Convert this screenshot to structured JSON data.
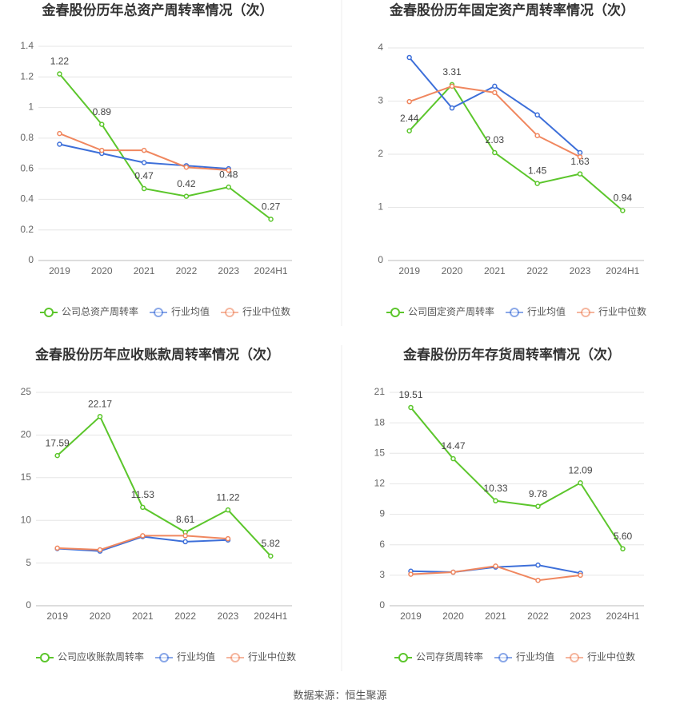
{
  "chart_data": [
    {
      "type": "line",
      "title": "金春股份历年总资产周转率情况（次）",
      "categories": [
        "2019",
        "2020",
        "2021",
        "2022",
        "2023",
        "2024H1"
      ],
      "ylim": [
        0,
        1.4
      ],
      "yticks": [
        0,
        0.2,
        0.4,
        0.6,
        0.8,
        1,
        1.2,
        1.4
      ],
      "grid": true,
      "legend": "bottom",
      "series": [
        {
          "name": "公司总资产周转率",
          "color": "#5cc62c",
          "values": [
            1.22,
            0.89,
            0.47,
            0.42,
            0.48,
            0.27
          ],
          "value_labels": [
            "1.22",
            "0.89",
            "0.47",
            "0.42",
            "0.48",
            "0.27"
          ]
        },
        {
          "name": "行业均值",
          "color": "#3d6fd9",
          "values": [
            0.76,
            0.7,
            0.64,
            0.62,
            0.6,
            null
          ]
        },
        {
          "name": "行业中位数",
          "color": "#f0875f",
          "values": [
            0.83,
            0.72,
            0.72,
            0.61,
            0.59,
            null
          ]
        }
      ]
    },
    {
      "type": "line",
      "title": "金春股份历年固定资产周转率情况（次）",
      "categories": [
        "2019",
        "2020",
        "2021",
        "2022",
        "2023",
        "2024H1"
      ],
      "ylim": [
        0,
        4
      ],
      "yticks": [
        0,
        1,
        2,
        3,
        4
      ],
      "grid": true,
      "legend": "bottom",
      "series": [
        {
          "name": "公司固定资产周转率",
          "color": "#5cc62c",
          "values": [
            2.44,
            3.31,
            2.03,
            1.45,
            1.63,
            0.94
          ],
          "value_labels": [
            "2.44",
            "3.31",
            "2.03",
            "1.45",
            "1.63",
            "0.94"
          ]
        },
        {
          "name": "行业均值",
          "color": "#3d6fd9",
          "values": [
            3.82,
            2.87,
            3.28,
            2.74,
            2.03,
            null
          ]
        },
        {
          "name": "行业中位数",
          "color": "#f0875f",
          "values": [
            2.99,
            3.28,
            3.16,
            2.35,
            1.95,
            null
          ]
        }
      ]
    },
    {
      "type": "line",
      "title": "金春股份历年应收账款周转率情况（次）",
      "categories": [
        "2019",
        "2020",
        "2021",
        "2022",
        "2023",
        "2024H1"
      ],
      "ylim": [
        0,
        25
      ],
      "yticks": [
        0,
        5,
        10,
        15,
        20,
        25
      ],
      "grid": true,
      "legend": "bottom",
      "series": [
        {
          "name": "公司应收账款周转率",
          "color": "#5cc62c",
          "values": [
            17.59,
            22.17,
            11.53,
            8.61,
            11.22,
            5.82
          ],
          "value_labels": [
            "17.59",
            "22.17",
            "11.53",
            "8.61",
            "11.22",
            "5.82"
          ]
        },
        {
          "name": "行业均值",
          "color": "#3d6fd9",
          "values": [
            6.7,
            6.4,
            8.1,
            7.5,
            7.7,
            null
          ]
        },
        {
          "name": "行业中位数",
          "color": "#f0875f",
          "values": [
            6.75,
            6.55,
            8.2,
            8.2,
            7.85,
            null
          ]
        }
      ]
    },
    {
      "type": "line",
      "title": "金春股份历年存货周转率情况（次）",
      "categories": [
        "2019",
        "2020",
        "2021",
        "2022",
        "2023",
        "2024H1"
      ],
      "ylim": [
        0,
        21
      ],
      "yticks": [
        0,
        3,
        6,
        9,
        12,
        15,
        18,
        21
      ],
      "grid": true,
      "legend": "bottom",
      "series": [
        {
          "name": "公司存货周转率",
          "color": "#5cc62c",
          "values": [
            19.51,
            14.47,
            10.33,
            9.78,
            12.09,
            5.6
          ],
          "value_labels": [
            "19.51",
            "14.47",
            "10.33",
            "9.78",
            "12.09",
            "5.60"
          ]
        },
        {
          "name": "行业均值",
          "color": "#3d6fd9",
          "values": [
            3.4,
            3.3,
            3.8,
            4.0,
            3.2,
            null
          ]
        },
        {
          "name": "行业中位数",
          "color": "#f0875f",
          "values": [
            3.1,
            3.3,
            3.9,
            2.5,
            3.0,
            null
          ]
        }
      ]
    }
  ],
  "source": "数据来源：恒生聚源"
}
